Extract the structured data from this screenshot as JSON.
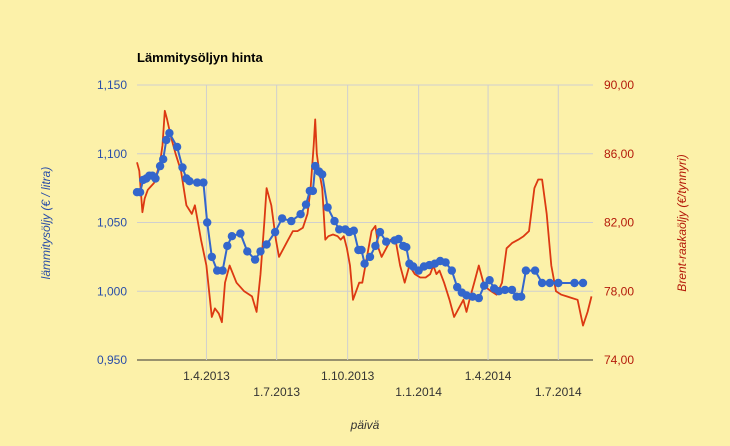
{
  "chart_data": {
    "type": "line",
    "title": "Lämmitysöljyn hinta",
    "xlabel": "päivä",
    "ylabel_left": "lämmitysöljy (€ / litra)",
    "ylabel_right": "Brent-raakaöljy (€/tynnyri)",
    "x_range": [
      "2013-01-01",
      "2014-08-15"
    ],
    "ylim_left": [
      0.95,
      1.15
    ],
    "ylim_right": [
      74,
      90
    ],
    "yticks_left": [
      "0,950",
      "1,000",
      "1,050",
      "1,100",
      "1,150"
    ],
    "yticks_right": [
      "74,00",
      "78,00",
      "82,00",
      "86,00",
      "90,00"
    ],
    "xticks_top": [
      {
        "date": "2013-04-01",
        "label": "1.4.2013"
      },
      {
        "date": "2013-10-01",
        "label": "1.10.2013"
      },
      {
        "date": "2014-04-01",
        "label": "1.4.2014"
      }
    ],
    "xticks_bottom": [
      {
        "date": "2013-07-01",
        "label": "1.7.2013"
      },
      {
        "date": "2014-01-01",
        "label": "1.1.2014"
      },
      {
        "date": "2014-07-01",
        "label": "1.7.2014"
      }
    ],
    "grid": true,
    "colors": {
      "heating_oil": "#3366cc",
      "brent": "#dc3912"
    },
    "series": [
      {
        "axis": "left",
        "markers": true,
        "points": [
          [
            "2013-01-01",
            1.072
          ],
          [
            "2013-01-05",
            1.072
          ],
          [
            "2013-01-09",
            1.081
          ],
          [
            "2013-01-13",
            1.082
          ],
          [
            "2013-01-17",
            1.084
          ],
          [
            "2013-01-21",
            1.084
          ],
          [
            "2013-01-25",
            1.082
          ],
          [
            "2013-01-31",
            1.091
          ],
          [
            "2013-02-04",
            1.096
          ],
          [
            "2013-02-08",
            1.11
          ],
          [
            "2013-02-12",
            1.115
          ],
          [
            "2013-02-22",
            1.105
          ],
          [
            "2013-03-01",
            1.09
          ],
          [
            "2013-03-06",
            1.082
          ],
          [
            "2013-03-10",
            1.08
          ],
          [
            "2013-03-20",
            1.079
          ],
          [
            "2013-03-28",
            1.079
          ],
          [
            "2013-04-02",
            1.05
          ],
          [
            "2013-04-08",
            1.025
          ],
          [
            "2013-04-15",
            1.015
          ],
          [
            "2013-04-22",
            1.015
          ],
          [
            "2013-04-28",
            1.033
          ],
          [
            "2013-05-04",
            1.04
          ],
          [
            "2013-05-15",
            1.042
          ],
          [
            "2013-05-24",
            1.029
          ],
          [
            "2013-06-03",
            1.023
          ],
          [
            "2013-06-10",
            1.029
          ],
          [
            "2013-06-18",
            1.034
          ],
          [
            "2013-06-29",
            1.043
          ],
          [
            "2013-07-08",
            1.053
          ],
          [
            "2013-07-20",
            1.051
          ],
          [
            "2013-08-01",
            1.056
          ],
          [
            "2013-08-08",
            1.063
          ],
          [
            "2013-08-13",
            1.073
          ],
          [
            "2013-08-17",
            1.073
          ],
          [
            "2013-08-20",
            1.091
          ],
          [
            "2013-08-25",
            1.087
          ],
          [
            "2013-08-29",
            1.085
          ],
          [
            "2013-09-05",
            1.061
          ],
          [
            "2013-09-14",
            1.051
          ],
          [
            "2013-09-20",
            1.045
          ],
          [
            "2013-09-28",
            1.045
          ],
          [
            "2013-10-03",
            1.043
          ],
          [
            "2013-10-09",
            1.044
          ],
          [
            "2013-10-15",
            1.03
          ],
          [
            "2013-10-19",
            1.03
          ],
          [
            "2013-10-23",
            1.02
          ],
          [
            "2013-10-30",
            1.025
          ],
          [
            "2013-11-06",
            1.033
          ],
          [
            "2013-11-12",
            1.043
          ],
          [
            "2013-11-20",
            1.036
          ],
          [
            "2013-12-01",
            1.037
          ],
          [
            "2013-12-06",
            1.038
          ],
          [
            "2013-12-12",
            1.033
          ],
          [
            "2013-12-16",
            1.032
          ],
          [
            "2013-12-20",
            1.02
          ],
          [
            "2013-12-25",
            1.018
          ],
          [
            "2014-01-01",
            1.015
          ],
          [
            "2014-01-08",
            1.018
          ],
          [
            "2014-01-15",
            1.019
          ],
          [
            "2014-01-22",
            1.02
          ],
          [
            "2014-01-29",
            1.022
          ],
          [
            "2014-02-05",
            1.021
          ],
          [
            "2014-02-13",
            1.015
          ],
          [
            "2014-02-20",
            1.003
          ],
          [
            "2014-02-26",
            0.999
          ],
          [
            "2014-03-04",
            0.997
          ],
          [
            "2014-03-12",
            0.996
          ],
          [
            "2014-03-20",
            0.995
          ],
          [
            "2014-03-27",
            1.004
          ],
          [
            "2014-04-03",
            1.008
          ],
          [
            "2014-04-09",
            1.002
          ],
          [
            "2014-04-15",
            1.0
          ],
          [
            "2014-04-23",
            1.001
          ],
          [
            "2014-05-02",
            1.001
          ],
          [
            "2014-05-08",
            0.996
          ],
          [
            "2014-05-14",
            0.996
          ],
          [
            "2014-05-20",
            1.015
          ],
          [
            "2014-06-01",
            1.015
          ],
          [
            "2014-06-10",
            1.006
          ],
          [
            "2014-06-20",
            1.006
          ],
          [
            "2014-07-01",
            1.006
          ],
          [
            "2014-07-22",
            1.006
          ],
          [
            "2014-08-02",
            1.006
          ]
        ]
      },
      {
        "axis": "right",
        "markers": false,
        "points": [
          [
            "2013-01-01",
            85.5
          ],
          [
            "2013-01-04",
            85.0
          ],
          [
            "2013-01-08",
            82.6
          ],
          [
            "2013-01-11",
            83.4
          ],
          [
            "2013-01-15",
            83.9
          ],
          [
            "2013-01-19",
            84.1
          ],
          [
            "2013-01-23",
            84.3
          ],
          [
            "2013-01-27",
            84.9
          ],
          [
            "2013-01-31",
            85.5
          ],
          [
            "2013-02-03",
            86.5
          ],
          [
            "2013-02-06",
            88.5
          ],
          [
            "2013-02-09",
            88.0
          ],
          [
            "2013-02-14",
            87.0
          ],
          [
            "2013-02-20",
            86.0
          ],
          [
            "2013-02-27",
            85.0
          ],
          [
            "2013-03-06",
            83.0
          ],
          [
            "2013-03-13",
            82.5
          ],
          [
            "2013-03-17",
            83.0
          ],
          [
            "2013-03-21",
            82.0
          ],
          [
            "2013-03-25",
            81.0
          ],
          [
            "2013-04-01",
            79.5
          ],
          [
            "2013-04-08",
            76.5
          ],
          [
            "2013-04-12",
            77.0
          ],
          [
            "2013-04-17",
            76.7
          ],
          [
            "2013-04-21",
            76.2
          ],
          [
            "2013-04-25",
            78.5
          ],
          [
            "2013-05-01",
            79.5
          ],
          [
            "2013-05-10",
            78.5
          ],
          [
            "2013-05-20",
            78.0
          ],
          [
            "2013-05-30",
            77.7
          ],
          [
            "2013-06-05",
            76.8
          ],
          [
            "2013-06-10",
            79.0
          ],
          [
            "2013-06-15",
            82.0
          ],
          [
            "2013-06-18",
            84.0
          ],
          [
            "2013-06-24",
            83.0
          ],
          [
            "2013-06-30",
            81.0
          ],
          [
            "2013-07-04",
            80.0
          ],
          [
            "2013-07-10",
            80.5
          ],
          [
            "2013-07-16",
            81.0
          ],
          [
            "2013-07-22",
            81.5
          ],
          [
            "2013-07-28",
            81.5
          ],
          [
            "2013-08-04",
            81.7
          ],
          [
            "2013-08-10",
            82.5
          ],
          [
            "2013-08-14",
            84.0
          ],
          [
            "2013-08-18",
            86.5
          ],
          [
            "2013-08-20",
            88.0
          ],
          [
            "2013-08-22",
            86.0
          ],
          [
            "2013-08-25",
            85.0
          ],
          [
            "2013-08-29",
            84.0
          ],
          [
            "2013-09-02",
            81.0
          ],
          [
            "2013-09-06",
            81.2
          ],
          [
            "2013-09-12",
            81.3
          ],
          [
            "2013-09-18",
            81.2
          ],
          [
            "2013-09-22",
            81.0
          ],
          [
            "2013-09-26",
            81.2
          ],
          [
            "2013-09-30",
            80.5
          ],
          [
            "2013-10-04",
            79.5
          ],
          [
            "2013-10-08",
            77.5
          ],
          [
            "2013-10-12",
            78.0
          ],
          [
            "2013-10-16",
            78.5
          ],
          [
            "2013-10-20",
            78.5
          ],
          [
            "2013-10-24",
            79.5
          ],
          [
            "2013-10-28",
            80.5
          ],
          [
            "2013-11-01",
            81.5
          ],
          [
            "2013-11-06",
            81.8
          ],
          [
            "2013-11-10",
            80.5
          ],
          [
            "2013-11-14",
            80.0
          ],
          [
            "2013-11-20",
            80.5
          ],
          [
            "2013-11-26",
            81.0
          ],
          [
            "2013-12-02",
            81.0
          ],
          [
            "2013-12-08",
            79.5
          ],
          [
            "2013-12-14",
            78.5
          ],
          [
            "2013-12-20",
            79.5
          ],
          [
            "2013-12-27",
            79.0
          ],
          [
            "2014-01-03",
            78.8
          ],
          [
            "2014-01-10",
            78.8
          ],
          [
            "2014-01-16",
            79.0
          ],
          [
            "2014-01-20",
            79.5
          ],
          [
            "2014-01-24",
            79.0
          ],
          [
            "2014-01-28",
            79.2
          ],
          [
            "2014-02-03",
            78.5
          ],
          [
            "2014-02-10",
            77.5
          ],
          [
            "2014-02-16",
            76.5
          ],
          [
            "2014-02-22",
            77.0
          ],
          [
            "2014-02-28",
            77.5
          ],
          [
            "2014-03-04",
            76.8
          ],
          [
            "2014-03-08",
            77.5
          ],
          [
            "2014-03-14",
            78.5
          ],
          [
            "2014-03-20",
            79.5
          ],
          [
            "2014-03-26",
            78.5
          ],
          [
            "2014-03-30",
            78.2
          ],
          [
            "2014-04-05",
            78.0
          ],
          [
            "2014-04-12",
            77.8
          ],
          [
            "2014-04-19",
            78.5
          ],
          [
            "2014-04-25",
            80.5
          ],
          [
            "2014-05-02",
            80.8
          ],
          [
            "2014-05-10",
            81.0
          ],
          [
            "2014-05-17",
            81.2
          ],
          [
            "2014-05-24",
            81.5
          ],
          [
            "2014-05-31",
            84.0
          ],
          [
            "2014-06-05",
            84.5
          ],
          [
            "2014-06-10",
            84.5
          ],
          [
            "2014-06-16",
            82.5
          ],
          [
            "2014-06-22",
            79.5
          ],
          [
            "2014-06-28",
            78.0
          ],
          [
            "2014-07-05",
            77.8
          ],
          [
            "2014-07-12",
            77.7
          ],
          [
            "2014-07-19",
            77.6
          ],
          [
            "2014-07-26",
            77.5
          ],
          [
            "2014-08-02",
            76.0
          ],
          [
            "2014-08-08",
            76.8
          ],
          [
            "2014-08-13",
            77.7
          ]
        ]
      }
    ]
  }
}
